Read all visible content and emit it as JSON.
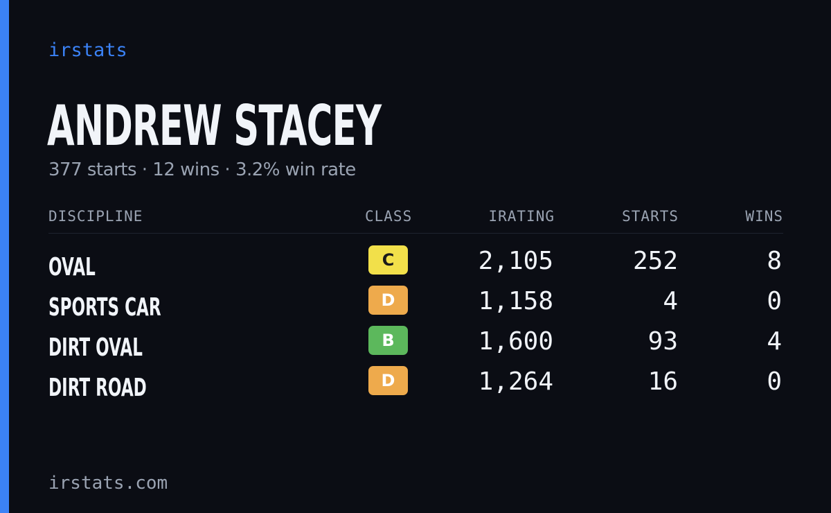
{
  "brand": "irstats",
  "player": {
    "name": "ANDREW STACEY",
    "summary": "377 starts · 12 wins · 3.2% win rate"
  },
  "table": {
    "headers": {
      "discipline": "DISCIPLINE",
      "class": "CLASS",
      "irating": "IRATING",
      "starts": "STARTS",
      "wins": "WINS"
    },
    "rows": [
      {
        "discipline": "OVAL",
        "class": "C",
        "irating": "2,105",
        "starts": "252",
        "wins": "8"
      },
      {
        "discipline": "SPORTS CAR",
        "class": "D",
        "irating": "1,158",
        "starts": "4",
        "wins": "0"
      },
      {
        "discipline": "DIRT OVAL",
        "class": "B",
        "irating": "1,600",
        "starts": "93",
        "wins": "4"
      },
      {
        "discipline": "DIRT ROAD",
        "class": "D",
        "irating": "1,264",
        "starts": "16",
        "wins": "0"
      }
    ]
  },
  "class_colors": {
    "B": {
      "bg": "#5cb85c",
      "fg": "#ffffff"
    },
    "C": {
      "bg": "#f2e04a",
      "fg": "#1a1a1a"
    },
    "D": {
      "bg": "#eeaa4c",
      "fg": "#ffffff"
    }
  },
  "colors": {
    "background": "#0b0d14",
    "accent": "#3b82f6",
    "text_primary": "#f1f4f9",
    "text_muted": "#9aa3b2"
  },
  "footer": {
    "domain": "irstats.com"
  }
}
